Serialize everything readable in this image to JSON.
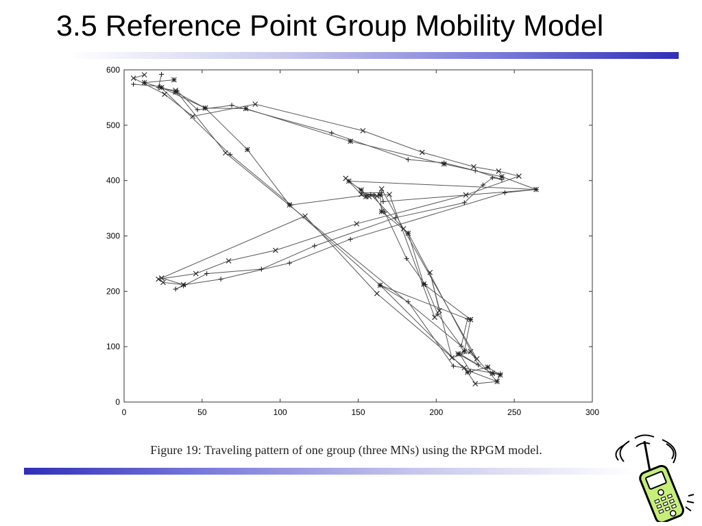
{
  "slide": {
    "title": "3.5 Reference Point Group Mobility Model",
    "caption": "Figure 19: Traveling pattern of one group (three MNs) using the RPGM model.",
    "icons": [
      "cellphone-clipart"
    ]
  },
  "colors": {
    "accent": "#2f2fb8",
    "line": "#555555"
  },
  "chart_data": {
    "type": "line",
    "title": "",
    "xlabel": "",
    "ylabel": "",
    "xlim": [
      0,
      300
    ],
    "ylim": [
      0,
      600
    ],
    "x_ticks": [
      "0",
      "50",
      "100",
      "150",
      "200",
      "250",
      "300"
    ],
    "y_ticks": [
      "0",
      "100",
      "200",
      "300",
      "400",
      "500",
      "600"
    ],
    "grid": false,
    "legend": "none",
    "series": [
      {
        "marker": "plus",
        "points": [
          [
            24,
            592
          ],
          [
            22,
            568
          ],
          [
            34,
            562
          ],
          [
            47,
            528
          ],
          [
            69,
            536
          ],
          [
            133,
            486
          ],
          [
            182,
            438
          ],
          [
            205,
            432
          ],
          [
            225,
            418
          ],
          [
            242,
            402
          ],
          [
            236,
            405
          ],
          [
            230,
            392
          ],
          [
            218,
            360
          ],
          [
            174,
            333
          ],
          [
            122,
            282
          ],
          [
            88,
            240
          ],
          [
            53,
            232
          ],
          [
            38,
            210
          ],
          [
            33,
            204
          ],
          [
            39,
            212
          ],
          [
            62,
            222
          ],
          [
            106,
            251
          ],
          [
            145,
            294
          ],
          [
            244,
            378
          ],
          [
            264,
            384
          ],
          [
            166,
            362
          ],
          [
            165,
            378
          ],
          [
            152,
            378
          ],
          [
            160,
            374
          ],
          [
            167,
            343
          ],
          [
            181,
            259
          ],
          [
            193,
            212
          ],
          [
            201,
            159
          ],
          [
            216,
            101
          ],
          [
            220,
            150
          ],
          [
            164,
            211
          ],
          [
            182,
            181
          ],
          [
            211,
            65
          ],
          [
            237,
            52
          ],
          [
            241,
            51
          ],
          [
            239,
            37
          ],
          [
            222,
            55
          ],
          [
            215,
            87
          ],
          [
            227,
            67
          ],
          [
            182,
            305
          ],
          [
            158,
            375
          ],
          [
            107,
            356
          ],
          [
            68,
            447
          ],
          [
            23,
            570
          ],
          [
            6,
            574
          ]
        ]
      },
      {
        "marker": "x",
        "points": [
          [
            13,
            591
          ],
          [
            6,
            585
          ],
          [
            26,
            556
          ],
          [
            44,
            516
          ],
          [
            84,
            538
          ],
          [
            153,
            490
          ],
          [
            191,
            451
          ],
          [
            224,
            425
          ],
          [
            240,
            417
          ],
          [
            253,
            408
          ],
          [
            219,
            374
          ],
          [
            149,
            322
          ],
          [
            97,
            274
          ],
          [
            67,
            255
          ],
          [
            46,
            232
          ],
          [
            22,
            222
          ],
          [
            25,
            216
          ],
          [
            38,
            212
          ],
          [
            24,
            224
          ],
          [
            116,
            336
          ],
          [
            162,
            196
          ],
          [
            218,
            62
          ],
          [
            225,
            33
          ],
          [
            239,
            37
          ],
          [
            222,
            91
          ],
          [
            210,
            80
          ],
          [
            196,
            234
          ],
          [
            202,
            165
          ],
          [
            199,
            153
          ],
          [
            170,
            375
          ],
          [
            157,
            371
          ],
          [
            142,
            404
          ],
          [
            152,
            375
          ],
          [
            162,
            372
          ],
          [
            165,
            385
          ],
          [
            179,
            313
          ],
          [
            226,
            78
          ],
          [
            65,
            450
          ],
          [
            33,
            563
          ]
        ]
      },
      {
        "marker": "star",
        "points": [
          [
            32,
            582
          ],
          [
            13,
            577
          ],
          [
            33,
            560
          ],
          [
            52,
            531
          ],
          [
            78,
            530
          ],
          [
            145,
            471
          ],
          [
            205,
            430
          ],
          [
            242,
            407
          ],
          [
            264,
            384
          ],
          [
            144,
            399
          ],
          [
            152,
            383
          ],
          [
            155,
            371
          ],
          [
            164,
            374
          ],
          [
            165,
            344
          ],
          [
            182,
            305
          ],
          [
            192,
            213
          ],
          [
            222,
            149
          ],
          [
            218,
            92
          ],
          [
            214,
            87
          ],
          [
            236,
            52
          ],
          [
            241,
            49
          ],
          [
            233,
            63
          ],
          [
            220,
            54
          ],
          [
            164,
            211
          ],
          [
            106,
            356
          ],
          [
            79,
            456
          ],
          [
            52,
            531
          ],
          [
            24,
            568
          ]
        ]
      }
    ]
  }
}
